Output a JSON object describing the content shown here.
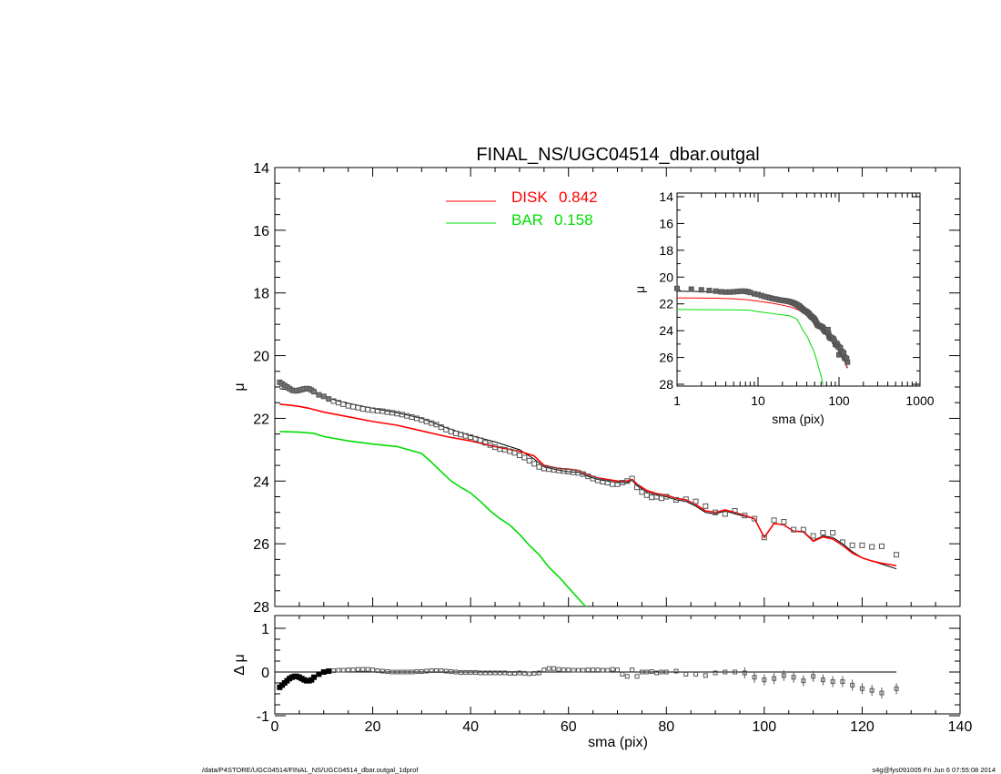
{
  "title": "FINAL_NS/UGC04514_dbar.outgal",
  "footer_left": "/data/P4STORE/UGC04514/FINAL_NS/UGC04514_dbar.outgal_1dprof",
  "footer_right": "s4g@fys091005  Fri Jun  6 07:55:08 2014",
  "colors": {
    "disk": "#ff0000",
    "bar": "#00dd00",
    "data": "#555555",
    "model": "#000000"
  },
  "chart_data": [
    {
      "id": "main",
      "type": "line",
      "title": "FINAL_NS/UGC04514_dbar.outgal",
      "xlabel": "",
      "ylabel": "μ",
      "xlim": [
        0,
        140
      ],
      "ylim": [
        28,
        14
      ],
      "y_ticks": [
        14,
        16,
        18,
        20,
        22,
        24,
        26,
        28
      ],
      "legend": [
        {
          "name": "DISK",
          "value": "0.842",
          "color": "#ff0000"
        },
        {
          "name": "BAR",
          "value": "0.158",
          "color": "#00dd00"
        }
      ],
      "data_points": {
        "x": [
          1,
          1.5,
          2,
          2.5,
          3,
          3.5,
          4,
          4.5,
          5,
          5.5,
          6,
          6.5,
          7,
          7.5,
          8,
          9,
          10,
          11,
          12,
          13,
          14,
          15,
          16,
          17,
          18,
          19,
          20,
          21,
          22,
          23,
          24,
          25,
          26,
          27,
          28,
          29,
          30,
          31,
          32,
          33,
          34,
          35,
          36,
          37,
          38,
          39,
          40,
          41,
          42,
          43,
          44,
          45,
          46,
          47,
          48,
          49,
          50,
          51,
          52,
          53,
          54,
          55,
          56,
          57,
          58,
          59,
          60,
          61,
          62,
          63,
          64,
          65,
          66,
          67,
          68,
          69,
          70,
          71,
          72,
          73,
          74,
          75,
          76,
          77,
          78,
          79,
          80,
          82,
          84,
          86,
          88,
          90,
          92,
          94,
          96,
          98,
          100,
          102,
          104,
          106,
          108,
          110,
          112,
          114,
          116,
          118,
          120,
          122,
          124,
          127
        ],
        "y": [
          20.85,
          20.9,
          20.95,
          21.0,
          21.05,
          21.1,
          21.12,
          21.12,
          21.1,
          21.08,
          21.06,
          21.05,
          21.06,
          21.1,
          21.15,
          21.25,
          21.3,
          21.38,
          21.45,
          21.5,
          21.55,
          21.6,
          21.63,
          21.66,
          21.7,
          21.72,
          21.74,
          21.76,
          21.77,
          21.8,
          21.82,
          21.85,
          21.88,
          21.92,
          21.96,
          22.0,
          22.05,
          22.1,
          22.15,
          22.2,
          22.28,
          22.36,
          22.42,
          22.48,
          22.52,
          22.56,
          22.6,
          22.65,
          22.7,
          22.78,
          22.85,
          22.92,
          22.98,
          23.0,
          23.05,
          23.1,
          23.18,
          23.25,
          23.35,
          23.45,
          23.55,
          23.6,
          23.62,
          23.64,
          23.66,
          23.68,
          23.7,
          23.72,
          23.74,
          23.78,
          23.85,
          23.92,
          23.98,
          24.02,
          24.05,
          24.1,
          24.1,
          24.05,
          24.0,
          23.92,
          24.2,
          24.35,
          24.45,
          24.52,
          24.5,
          24.55,
          24.5,
          24.6,
          24.58,
          24.65,
          24.8,
          25.0,
          25.05,
          24.95,
          25.1,
          25.2,
          25.8,
          25.25,
          25.3,
          25.55,
          25.55,
          25.75,
          25.65,
          25.65,
          25.95,
          26.05,
          26.05,
          26.1,
          26.08,
          26.35
        ]
      },
      "model_total": {
        "x": [
          1,
          3,
          5,
          7,
          8,
          10,
          13,
          16,
          20,
          25,
          30,
          35,
          40,
          45,
          50,
          53,
          55,
          58,
          60,
          62,
          64,
          66,
          68,
          70,
          72,
          73,
          74,
          76,
          78,
          80,
          82,
          84,
          86,
          88,
          90,
          92,
          94,
          96,
          98,
          100,
          102,
          104,
          106,
          108,
          110,
          112,
          114,
          116,
          118,
          120,
          122,
          124,
          127
        ],
        "y": [
          21.05,
          21.1,
          21.1,
          21.1,
          21.15,
          21.3,
          21.45,
          21.55,
          21.68,
          21.82,
          22.0,
          22.3,
          22.55,
          22.75,
          23.0,
          23.3,
          23.55,
          23.65,
          23.7,
          23.72,
          23.85,
          23.95,
          24.0,
          24.05,
          24.05,
          23.98,
          24.15,
          24.35,
          24.45,
          24.5,
          24.6,
          24.65,
          24.8,
          25.0,
          25.05,
          24.95,
          25.05,
          25.12,
          25.2,
          25.8,
          25.35,
          25.4,
          25.6,
          25.6,
          25.9,
          25.75,
          25.8,
          26.0,
          26.25,
          26.45,
          26.55,
          26.65,
          26.8
        ]
      },
      "series": [
        {
          "name": "DISK",
          "color": "#ff0000",
          "x": [
            1,
            3,
            5,
            7,
            10,
            15,
            20,
            25,
            30,
            35,
            40,
            45,
            50,
            53,
            55,
            58,
            60,
            62,
            64,
            66,
            68,
            70,
            72,
            73,
            74,
            76,
            78,
            80,
            82,
            84,
            86,
            88,
            90,
            92,
            94,
            96,
            98,
            100,
            102,
            104,
            106,
            108,
            110,
            112,
            114,
            116,
            118,
            120,
            122,
            124,
            127
          ],
          "y": [
            21.55,
            21.58,
            21.62,
            21.68,
            21.8,
            21.95,
            22.1,
            22.22,
            22.4,
            22.58,
            22.72,
            22.9,
            23.05,
            23.2,
            23.5,
            23.6,
            23.62,
            23.66,
            23.8,
            23.9,
            23.95,
            24.0,
            24.0,
            23.95,
            24.1,
            24.3,
            24.4,
            24.45,
            24.55,
            24.6,
            24.75,
            24.95,
            25.0,
            24.92,
            25.0,
            25.1,
            25.2,
            25.8,
            25.35,
            25.4,
            25.6,
            25.62,
            25.92,
            25.78,
            25.85,
            26.05,
            26.3,
            26.45,
            26.55,
            26.62,
            26.7
          ]
        },
        {
          "name": "BAR",
          "color": "#00dd00",
          "x": [
            1,
            5,
            8,
            10,
            15,
            20,
            25,
            30,
            32,
            34,
            36,
            38,
            40,
            42,
            44,
            46,
            48,
            50,
            52,
            54,
            56,
            58,
            60,
            62,
            63.5
          ],
          "y": [
            22.42,
            22.44,
            22.48,
            22.58,
            22.72,
            22.82,
            22.9,
            23.12,
            23.4,
            23.7,
            24.0,
            24.2,
            24.38,
            24.65,
            24.95,
            25.2,
            25.4,
            25.7,
            26.05,
            26.35,
            26.75,
            27.05,
            27.4,
            27.75,
            28.05
          ]
        }
      ]
    },
    {
      "id": "residual",
      "type": "scatter",
      "xlabel": "sma (pix)",
      "ylabel": "Δ μ",
      "xlim": [
        0,
        140
      ],
      "ylim": [
        -1,
        1
      ],
      "x_ticks": [
        0,
        20,
        40,
        60,
        80,
        100,
        120,
        140
      ],
      "y_ticks": [
        1,
        0,
        -1
      ],
      "points": {
        "x": [
          1,
          1.5,
          2,
          2.5,
          3,
          3.5,
          4,
          4.5,
          5,
          5.5,
          6,
          6.5,
          7,
          7.5,
          8,
          9,
          10,
          11,
          12,
          13,
          14,
          15,
          16,
          17,
          18,
          19,
          20,
          21,
          22,
          23,
          24,
          25,
          26,
          27,
          28,
          29,
          30,
          31,
          32,
          33,
          34,
          35,
          36,
          37,
          38,
          39,
          40,
          41,
          42,
          43,
          44,
          45,
          46,
          47,
          48,
          49,
          50,
          51,
          52,
          53,
          54,
          55,
          56,
          57,
          58,
          59,
          60,
          61,
          62,
          63,
          64,
          65,
          66,
          67,
          68,
          69,
          70,
          71,
          72,
          73,
          74,
          75,
          76,
          77,
          78,
          79,
          80,
          82,
          84,
          86,
          88,
          90,
          92,
          94,
          96,
          98,
          100,
          102,
          104,
          106,
          108,
          110,
          112,
          114,
          116,
          118,
          120,
          122,
          124,
          127
        ],
        "y": [
          -0.35,
          -0.3,
          -0.25,
          -0.2,
          -0.15,
          -0.12,
          -0.1,
          -0.1,
          -0.12,
          -0.15,
          -0.18,
          -0.2,
          -0.2,
          -0.18,
          -0.12,
          -0.05,
          0.0,
          0.02,
          0.03,
          0.04,
          0.04,
          0.05,
          0.05,
          0.06,
          0.06,
          0.06,
          0.05,
          0.03,
          0.02,
          0.01,
          0.0,
          0.0,
          0.0,
          0.0,
          0.0,
          0.01,
          0.01,
          0.02,
          0.03,
          0.03,
          0.03,
          0.02,
          0.01,
          0.0,
          -0.01,
          -0.01,
          -0.01,
          -0.01,
          -0.02,
          -0.02,
          -0.02,
          -0.02,
          -0.02,
          -0.02,
          -0.03,
          -0.03,
          -0.02,
          -0.03,
          -0.04,
          -0.03,
          -0.02,
          0.05,
          0.08,
          0.08,
          0.06,
          0.05,
          0.05,
          0.04,
          0.04,
          0.04,
          0.05,
          0.05,
          0.05,
          0.04,
          0.04,
          0.06,
          0.05,
          -0.05,
          -0.1,
          0.05,
          -0.1,
          0.0,
          0.0,
          0.01,
          -0.02,
          0.0,
          0.0,
          0.02,
          -0.05,
          -0.05,
          -0.08,
          -0.02,
          0.0,
          0.0,
          -0.02,
          -0.12,
          -0.18,
          -0.15,
          -0.08,
          -0.12,
          -0.2,
          -0.1,
          -0.18,
          -0.22,
          -0.22,
          -0.3,
          -0.38,
          -0.42,
          -0.48,
          -0.38
        ]
      }
    },
    {
      "id": "inset",
      "type": "line",
      "xlabel": "sma (pix)",
      "ylabel": "μ",
      "x_scale": "log",
      "xlim": [
        1,
        1000
      ],
      "ylim": [
        28,
        14
      ],
      "x_ticks": [
        1,
        10,
        100,
        1000
      ],
      "y_ticks": [
        14,
        16,
        18,
        20,
        22,
        24,
        26,
        28
      ]
    }
  ]
}
